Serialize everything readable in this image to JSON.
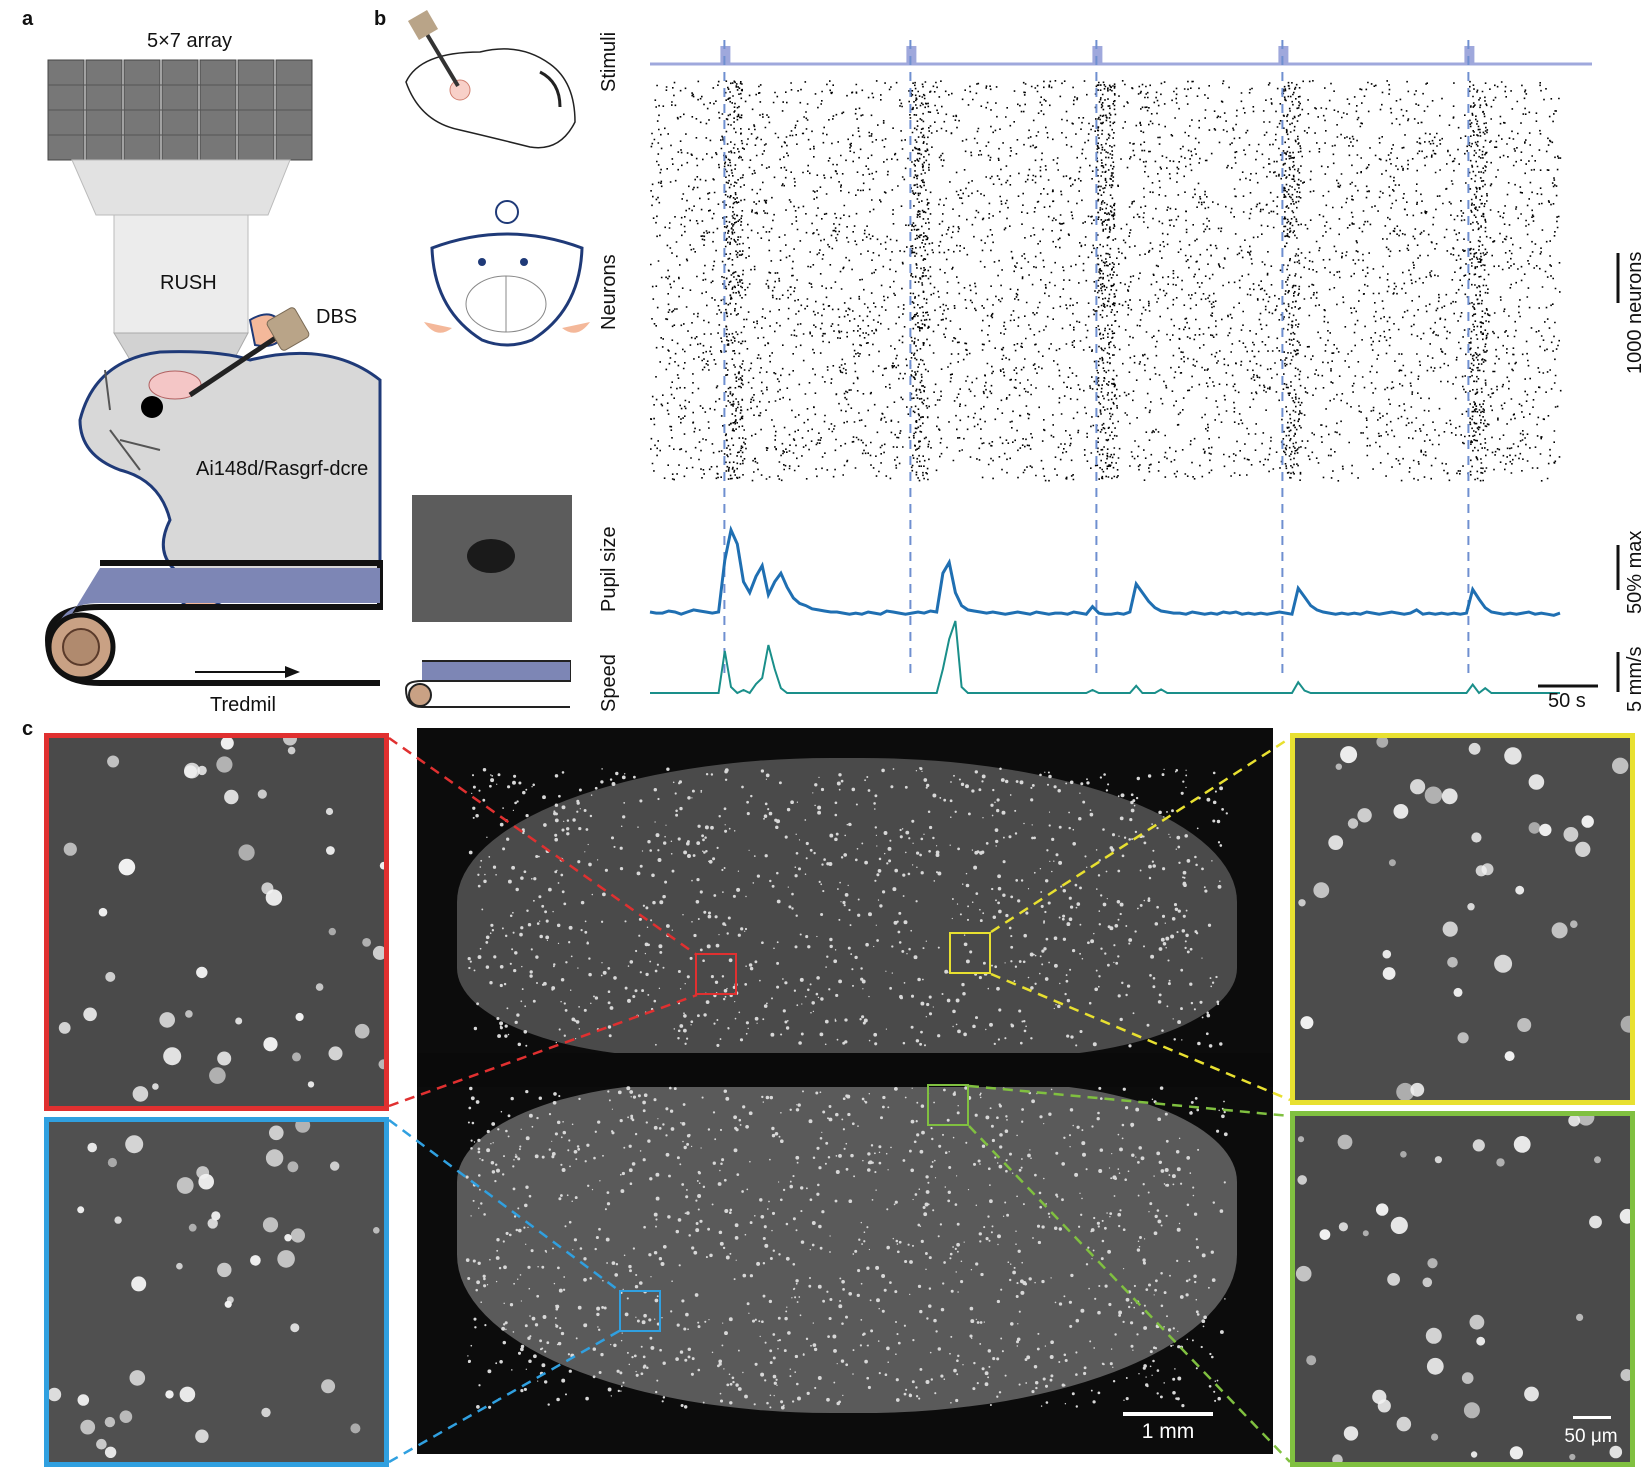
{
  "panels": {
    "a": "a",
    "b": "b",
    "c": "c"
  },
  "panel_a": {
    "array_label": "5×7 array",
    "objective_label": "RUSH",
    "probe_label": "DBS",
    "mouse_label": "Ai148d/Rasgrf-dcre",
    "treadmill_label": "Tredmil",
    "colors": {
      "mouse": "#d8d8d8",
      "outline": "#1f3a78",
      "belt": "#7d86b5",
      "ear": "#f4b89a"
    }
  },
  "panel_b": {
    "row_labels": {
      "stimuli": "Stimuli",
      "neurons": "Neurons",
      "pupil": "Pupil size",
      "speed": "Speed"
    },
    "scale_bars": {
      "neurons": "1000 neurons",
      "pupil": "50% max",
      "speed": "5 mm/s",
      "time": "50 s"
    },
    "stimulus_times_s": [
      40,
      140,
      240,
      340,
      440
    ],
    "stimulus_color": "#9fa8dc",
    "pupil_color": "#1f6fb2",
    "speed_color": "#1a8f8a",
    "pupil_trace": [
      12,
      11,
      11,
      13,
      12,
      10,
      12,
      14,
      13,
      12,
      11,
      12,
      60,
      88,
      75,
      40,
      30,
      45,
      55,
      28,
      40,
      48,
      35,
      25,
      20,
      18,
      15,
      14,
      13,
      12,
      12,
      11,
      10,
      11,
      10,
      12,
      11,
      10,
      13,
      12,
      11,
      10,
      11,
      12,
      11,
      13,
      12,
      48,
      58,
      30,
      18,
      14,
      13,
      12,
      11,
      12,
      11,
      10,
      11,
      12,
      11,
      10,
      12,
      11,
      10,
      11,
      11,
      10,
      12,
      11,
      10,
      17,
      11,
      10,
      10,
      11,
      10,
      12,
      38,
      30,
      22,
      16,
      13,
      12,
      11,
      11,
      10,
      12,
      11,
      10,
      11,
      10,
      12,
      11,
      12,
      10,
      11,
      10,
      11,
      10,
      11,
      12,
      11,
      10,
      34,
      26,
      18,
      14,
      12,
      11,
      10,
      11,
      10,
      11,
      10,
      12,
      11,
      10,
      11,
      12,
      11,
      10,
      11,
      14,
      10,
      11,
      10,
      11,
      10,
      11,
      10,
      11,
      33,
      24,
      16,
      12,
      11,
      10,
      11,
      10,
      11,
      12,
      10,
      11,
      10,
      9,
      11
    ],
    "speed_trace": [
      0,
      0,
      0,
      0,
      0,
      0,
      0,
      0,
      0,
      0,
      0,
      0,
      70,
      10,
      0,
      5,
      0,
      15,
      25,
      80,
      40,
      8,
      0,
      0,
      0,
      0,
      0,
      0,
      0,
      0,
      0,
      0,
      0,
      0,
      0,
      0,
      0,
      0,
      0,
      0,
      0,
      0,
      0,
      0,
      0,
      0,
      0,
      40,
      90,
      120,
      10,
      0,
      0,
      0,
      0,
      0,
      0,
      0,
      0,
      0,
      0,
      0,
      0,
      0,
      0,
      0,
      0,
      0,
      0,
      0,
      0,
      5,
      0,
      0,
      0,
      0,
      0,
      0,
      12,
      0,
      0,
      0,
      6,
      0,
      0,
      0,
      0,
      0,
      0,
      0,
      0,
      0,
      0,
      0,
      0,
      0,
      0,
      0,
      0,
      0,
      0,
      0,
      0,
      0,
      18,
      4,
      0,
      0,
      0,
      0,
      0,
      0,
      0,
      0,
      0,
      0,
      0,
      0,
      0,
      0,
      0,
      0,
      0,
      0,
      0,
      0,
      0,
      0,
      0,
      0,
      0,
      0,
      14,
      0,
      8,
      0,
      0,
      0,
      0,
      0,
      0,
      0,
      0,
      0,
      0,
      0,
      0
    ]
  },
  "panel_c": {
    "scale_bars": {
      "main": "1 mm",
      "inset": "50 μm"
    },
    "inset_colors": {
      "red": "#e03030",
      "blue": "#30a0e0",
      "yellow": "#e8e030",
      "green": "#80c040"
    }
  }
}
